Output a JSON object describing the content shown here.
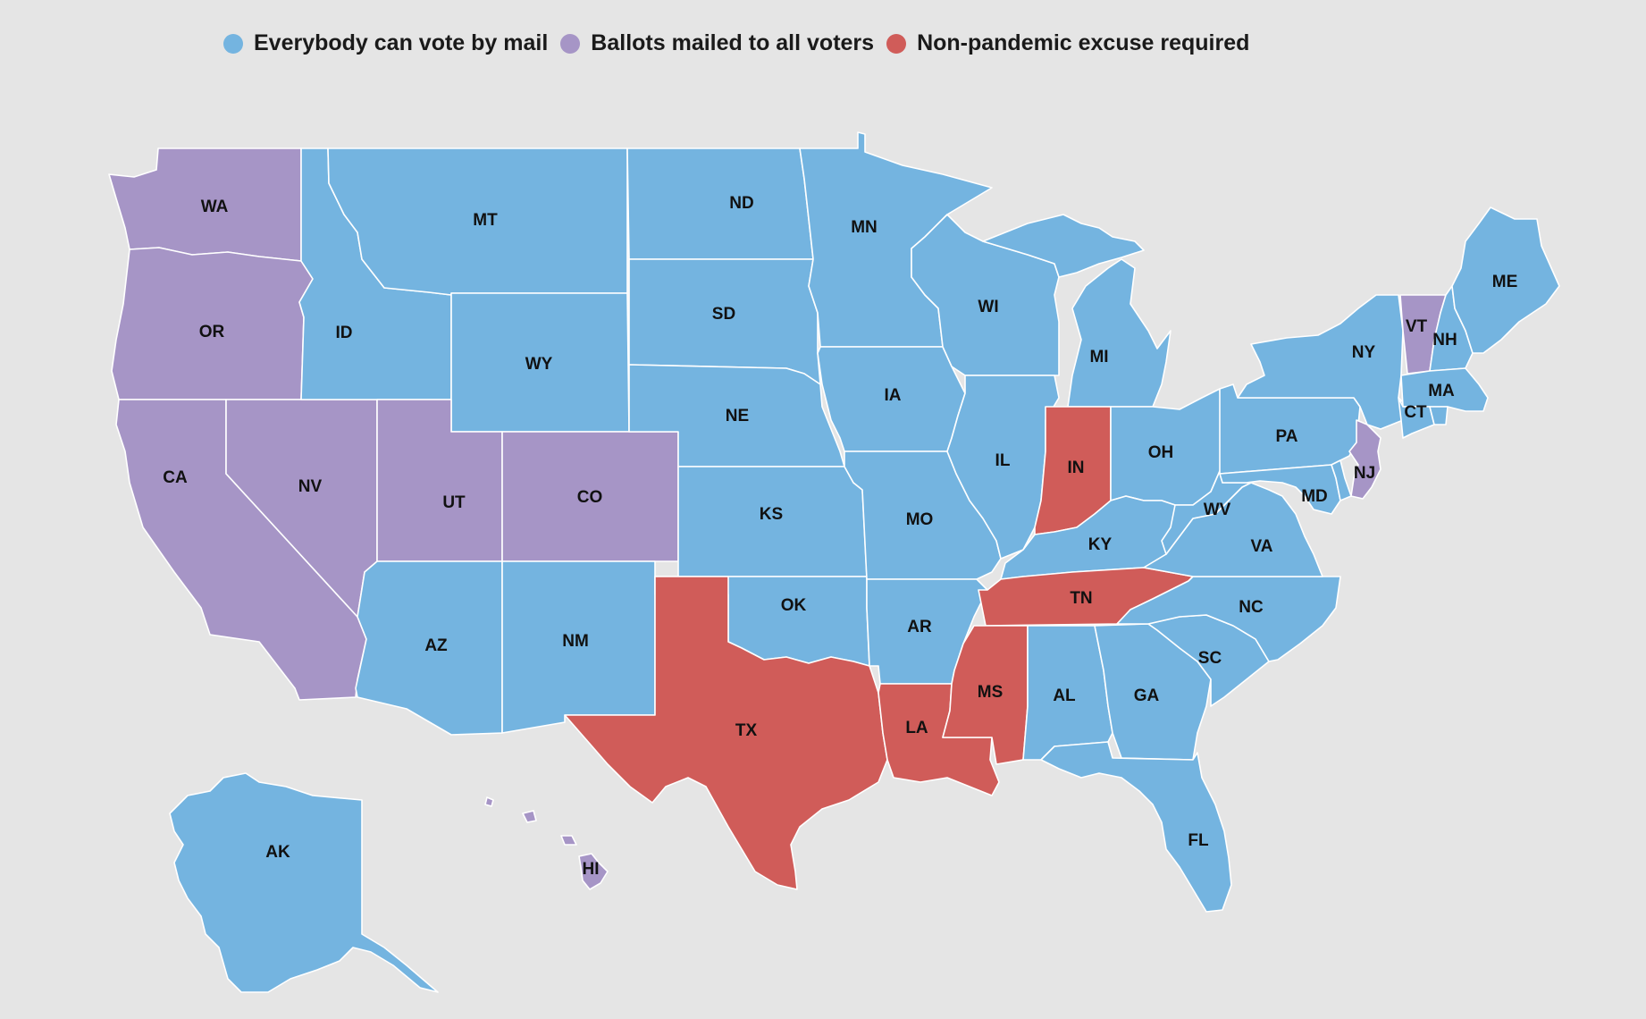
{
  "colors": {
    "vote_by_mail": "#74b4e0",
    "mailed_to_all": "#a695c6",
    "excuse_required": "#d05c59",
    "background": "#e5e5e5"
  },
  "legend": [
    {
      "key": "vote_by_mail",
      "label": "Everybody can vote by mail"
    },
    {
      "key": "mailed_to_all",
      "label": "Ballots mailed to all voters"
    },
    {
      "key": "excuse_required",
      "label": "Non-pandemic excuse required"
    }
  ],
  "states": {
    "WA": "mailed_to_all",
    "OR": "mailed_to_all",
    "CA": "mailed_to_all",
    "NV": "mailed_to_all",
    "UT": "mailed_to_all",
    "CO": "mailed_to_all",
    "VT": "mailed_to_all",
    "NJ": "mailed_to_all",
    "HI": "mailed_to_all",
    "TX": "excuse_required",
    "LA": "excuse_required",
    "MS": "excuse_required",
    "TN": "excuse_required",
    "IN": "excuse_required",
    "ID": "vote_by_mail",
    "MT": "vote_by_mail",
    "WY": "vote_by_mail",
    "AZ": "vote_by_mail",
    "NM": "vote_by_mail",
    "ND": "vote_by_mail",
    "SD": "vote_by_mail",
    "NE": "vote_by_mail",
    "KS": "vote_by_mail",
    "OK": "vote_by_mail",
    "MN": "vote_by_mail",
    "IA": "vote_by_mail",
    "MO": "vote_by_mail",
    "AR": "vote_by_mail",
    "WI": "vote_by_mail",
    "IL": "vote_by_mail",
    "MI": "vote_by_mail",
    "OH": "vote_by_mail",
    "KY": "vote_by_mail",
    "WV": "vote_by_mail",
    "VA": "vote_by_mail",
    "NC": "vote_by_mail",
    "SC": "vote_by_mail",
    "GA": "vote_by_mail",
    "AL": "vote_by_mail",
    "FL": "vote_by_mail",
    "PA": "vote_by_mail",
    "NY": "vote_by_mail",
    "MD": "vote_by_mail",
    "DE": "vote_by_mail",
    "CT": "vote_by_mail",
    "MA": "vote_by_mail",
    "RI": "vote_by_mail",
    "NH": "vote_by_mail",
    "ME": "vote_by_mail",
    "AK": "vote_by_mail"
  },
  "labels": [
    "WA",
    "OR",
    "CA",
    "NV",
    "ID",
    "MT",
    "WY",
    "UT",
    "CO",
    "AZ",
    "NM",
    "ND",
    "SD",
    "NE",
    "KS",
    "OK",
    "TX",
    "MN",
    "IA",
    "MO",
    "AR",
    "LA",
    "WI",
    "IL",
    "MS",
    "MI",
    "IN",
    "OH",
    "KY",
    "TN",
    "AL",
    "GA",
    "FL",
    "SC",
    "NC",
    "VA",
    "WV",
    "PA",
    "NY",
    "MD",
    "NJ",
    "CT",
    "MA",
    "VT",
    "NH",
    "ME",
    "AK",
    "HI"
  ]
}
